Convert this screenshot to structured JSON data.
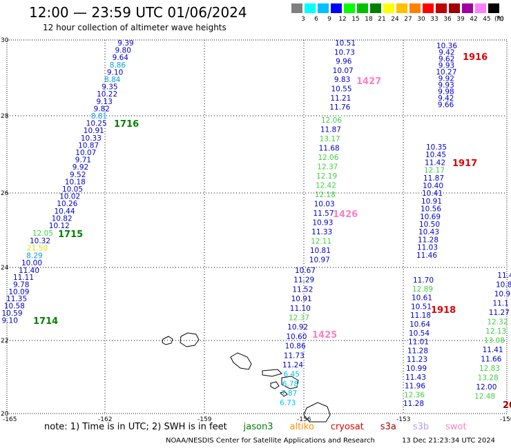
{
  "header": {
    "title": "12:00 — 23:59 UTC 01/06/2024",
    "subtitle": "12 hour collection of altimeter wave heights"
  },
  "scale": {
    "labels": [
      "3",
      "6",
      "9",
      "12",
      "15",
      "18",
      "21",
      "24",
      "27",
      "30",
      "33",
      "36",
      "39",
      "42",
      "45",
      "70"
    ],
    "unit": "(ft)",
    "colors": [
      "#808080",
      "#00ffff",
      "#00bfff",
      "#0000ff",
      "#00ff00",
      "#00c000",
      "#008000",
      "#ffff00",
      "#ffc000",
      "#ff8000",
      "#ff0000",
      "#c00000",
      "#a00000",
      "#a000a0",
      "#ff80ff",
      "#000000"
    ]
  },
  "axes": {
    "lat_labels": [
      "30",
      "28",
      "26",
      "24",
      "22",
      "20"
    ],
    "lon_labels": [
      "-165",
      "-162",
      "-159",
      "-156",
      "-153",
      "-150"
    ]
  },
  "tracks": [
    {
      "label": "1716",
      "color": "#008000",
      "values": [
        [
          "9.39",
          "#0000cc"
        ],
        [
          "9.80",
          "#0000cc"
        ],
        [
          "9.64",
          "#0000cc"
        ],
        [
          "8.86",
          "#00a0e0"
        ],
        [
          "9.10",
          "#0000cc"
        ],
        [
          "8.84",
          "#00a0e0"
        ],
        [
          "9.35",
          "#0000cc"
        ],
        [
          "10.22",
          "#0000cc"
        ],
        [
          "9.13",
          "#0000cc"
        ],
        [
          "9.82",
          "#0000cc"
        ],
        [
          "8.81",
          "#00a0e0"
        ],
        [
          "10.25",
          "#0000cc"
        ],
        [
          "10.91",
          "#0000cc"
        ],
        [
          "10.33",
          "#0000cc"
        ],
        [
          "10.87",
          "#0000cc"
        ],
        [
          "10.07",
          "#0000cc"
        ],
        [
          "9.71",
          "#0000cc"
        ],
        [
          "9.92",
          "#0000cc"
        ],
        [
          "9.52",
          "#0000cc"
        ],
        [
          "10.18",
          "#0000cc"
        ],
        [
          "10.05",
          "#0000cc"
        ],
        [
          "10.02",
          "#0000cc"
        ],
        [
          "10.26",
          "#0000cc"
        ],
        [
          "10.44",
          "#0000cc"
        ],
        [
          "10.82",
          "#0000cc"
        ],
        [
          "10.12",
          "#0000cc"
        ]
      ]
    },
    {
      "label": "1715",
      "color": "#008000",
      "values": [
        [
          "12.05",
          "#40d040"
        ],
        [
          "10.32",
          "#0000cc"
        ],
        [
          "21.50",
          "#e0e000"
        ],
        [
          "8.29",
          "#00a0e0"
        ],
        [
          "10.00",
          "#0000cc"
        ],
        [
          "11.40",
          "#0000cc"
        ]
      ]
    },
    {
      "label": "1714",
      "color": "#008000",
      "values": [
        [
          "11.11",
          "#0000cc"
        ],
        [
          "9.78",
          "#0000cc"
        ],
        [
          "10.09",
          "#0000cc"
        ],
        [
          "11.35",
          "#0000cc"
        ],
        [
          "10.58",
          "#0000cc"
        ],
        [
          "10.59",
          "#0000cc"
        ],
        [
          "9.10",
          "#0000cc"
        ]
      ]
    },
    {
      "label": "1427",
      "color": "#ff80c0",
      "values": [
        [
          "10.51",
          "#0000cc"
        ],
        [
          "10.73",
          "#0000cc"
        ],
        [
          "9.96",
          "#0000cc"
        ],
        [
          "10.07",
          "#0000cc"
        ],
        [
          "9.83",
          "#0000cc"
        ],
        [
          "10.55",
          "#0000cc"
        ],
        [
          "11.21",
          "#0000cc"
        ],
        [
          "11.76",
          "#0000cc"
        ]
      ]
    },
    {
      "label": "1426",
      "color": "#ff80c0",
      "values": [
        [
          "12.06",
          "#40d040"
        ],
        [
          "11.87",
          "#0000cc"
        ],
        [
          "13.17",
          "#40d040"
        ],
        [
          "11.68",
          "#0000cc"
        ],
        [
          "12.06",
          "#40d040"
        ],
        [
          "12.37",
          "#40d040"
        ],
        [
          "12.19",
          "#40d040"
        ],
        [
          "12.42",
          "#40d040"
        ],
        [
          "12.18",
          "#40d040"
        ],
        [
          "10.03",
          "#0000cc"
        ],
        [
          "11.57",
          "#0000cc"
        ],
        [
          "10.93",
          "#0000cc"
        ],
        [
          "11.33",
          "#0000cc"
        ],
        [
          "12.11",
          "#40d040"
        ],
        [
          "10.81",
          "#0000cc"
        ],
        [
          "10.97",
          "#0000cc"
        ]
      ]
    },
    {
      "label": "1425",
      "color": "#ff80c0",
      "values": [
        [
          "10.67",
          "#0000cc"
        ],
        [
          "11.29",
          "#0000cc"
        ],
        [
          "11.52",
          "#0000cc"
        ],
        [
          "10.91",
          "#0000cc"
        ],
        [
          "11.10",
          "#0000cc"
        ],
        [
          "12.37",
          "#40d040"
        ],
        [
          "10.92",
          "#0000cc"
        ],
        [
          "10.60",
          "#0000cc"
        ],
        [
          "10.86",
          "#0000cc"
        ],
        [
          "11.73",
          "#0000cc"
        ],
        [
          "11.24",
          "#0000cc"
        ],
        [
          "6.45",
          "#00c0ff"
        ],
        [
          "6.78",
          "#00c0ff"
        ],
        [
          "7.87",
          "#00c0ff"
        ],
        [
          "6.73",
          "#00c0ff"
        ]
      ]
    },
    {
      "label": "1916",
      "color": "#dd0000",
      "values": [
        [
          "10.36",
          "#0000cc"
        ],
        [
          "9.42",
          "#0000cc"
        ],
        [
          "9.62",
          "#0000cc"
        ],
        [
          "9.93",
          "#0000cc"
        ],
        [
          "10.27",
          "#0000cc"
        ],
        [
          "9.92",
          "#0000cc"
        ],
        [
          "9.93",
          "#0000cc"
        ],
        [
          "9.98",
          "#0000cc"
        ],
        [
          "9.42",
          "#0000cc"
        ],
        [
          "9.66",
          "#0000cc"
        ]
      ]
    },
    {
      "label": "1917",
      "color": "#dd0000",
      "values": [
        [
          "10.35",
          "#0000cc"
        ],
        [
          "10.45",
          "#0000cc"
        ],
        [
          "11.42",
          "#0000cc"
        ],
        [
          "12.17",
          "#40d040"
        ],
        [
          "11.87",
          "#0000cc"
        ],
        [
          "10.40",
          "#0000cc"
        ],
        [
          "10.41",
          "#0000cc"
        ],
        [
          "10.91",
          "#0000cc"
        ],
        [
          "10.56",
          "#0000cc"
        ],
        [
          "10.69",
          "#0000cc"
        ],
        [
          "10.50",
          "#0000cc"
        ],
        [
          "10.43",
          "#0000cc"
        ],
        [
          "11.28",
          "#0000cc"
        ],
        [
          "11.03",
          "#0000cc"
        ],
        [
          "11.46",
          "#0000cc"
        ]
      ]
    },
    {
      "label": "1918",
      "color": "#dd0000",
      "values": [
        [
          "11.70",
          "#0000cc"
        ],
        [
          "12.89",
          "#40d040"
        ],
        [
          "10.61",
          "#0000cc"
        ],
        [
          "10.51",
          "#0000cc"
        ],
        [
          "11.18",
          "#0000cc"
        ],
        [
          "10.64",
          "#0000cc"
        ],
        [
          "10.54",
          "#0000cc"
        ],
        [
          "11.01",
          "#0000cc"
        ],
        [
          "11.28",
          "#0000cc"
        ],
        [
          "11.23",
          "#0000cc"
        ],
        [
          "10.99",
          "#0000cc"
        ],
        [
          "11.43",
          "#0000cc"
        ],
        [
          "11.96",
          "#0000cc"
        ],
        [
          "12.36",
          "#40d040"
        ],
        [
          "11.28",
          "#0000cc"
        ]
      ]
    },
    {
      "label": "20",
      "color": "#aa0000",
      "values": [
        [
          "11.4",
          "#0000cc"
        ],
        [
          "10.8",
          "#0000cc"
        ],
        [
          "10.9",
          "#0000cc"
        ],
        [
          "11.1",
          "#0000cc"
        ],
        [
          "11.27",
          "#0000cc"
        ],
        [
          "12.32",
          "#40d040"
        ],
        [
          "12.13",
          "#40d040"
        ],
        [
          "13.08",
          "#40d040"
        ],
        [
          "11.41",
          "#0000cc"
        ],
        [
          "11.66",
          "#0000cc"
        ],
        [
          "12.83",
          "#40d040"
        ],
        [
          "13.28",
          "#40d040"
        ],
        [
          "12.00",
          "#0000cc"
        ],
        [
          "12.48",
          "#40d040"
        ]
      ]
    }
  ],
  "footer": {
    "note": "note: 1) Time is in UTC; 2) SWH is in feet",
    "satellites": [
      {
        "name": "jason3",
        "color": "#008000"
      },
      {
        "name": "altiko",
        "color": "#ff9000"
      },
      {
        "name": "cryosat",
        "color": "#dd0000"
      },
      {
        "name": "s3a",
        "color": "#aa0000"
      },
      {
        "name": "s3b",
        "color": "#b0a0ff"
      },
      {
        "name": "swot",
        "color": "#ff80c0"
      }
    ],
    "credit": "NOAA/NESDIS Center for Satellite Applications and Research",
    "timestamp": "13 Dec 21:23:34 UTC 2024"
  }
}
